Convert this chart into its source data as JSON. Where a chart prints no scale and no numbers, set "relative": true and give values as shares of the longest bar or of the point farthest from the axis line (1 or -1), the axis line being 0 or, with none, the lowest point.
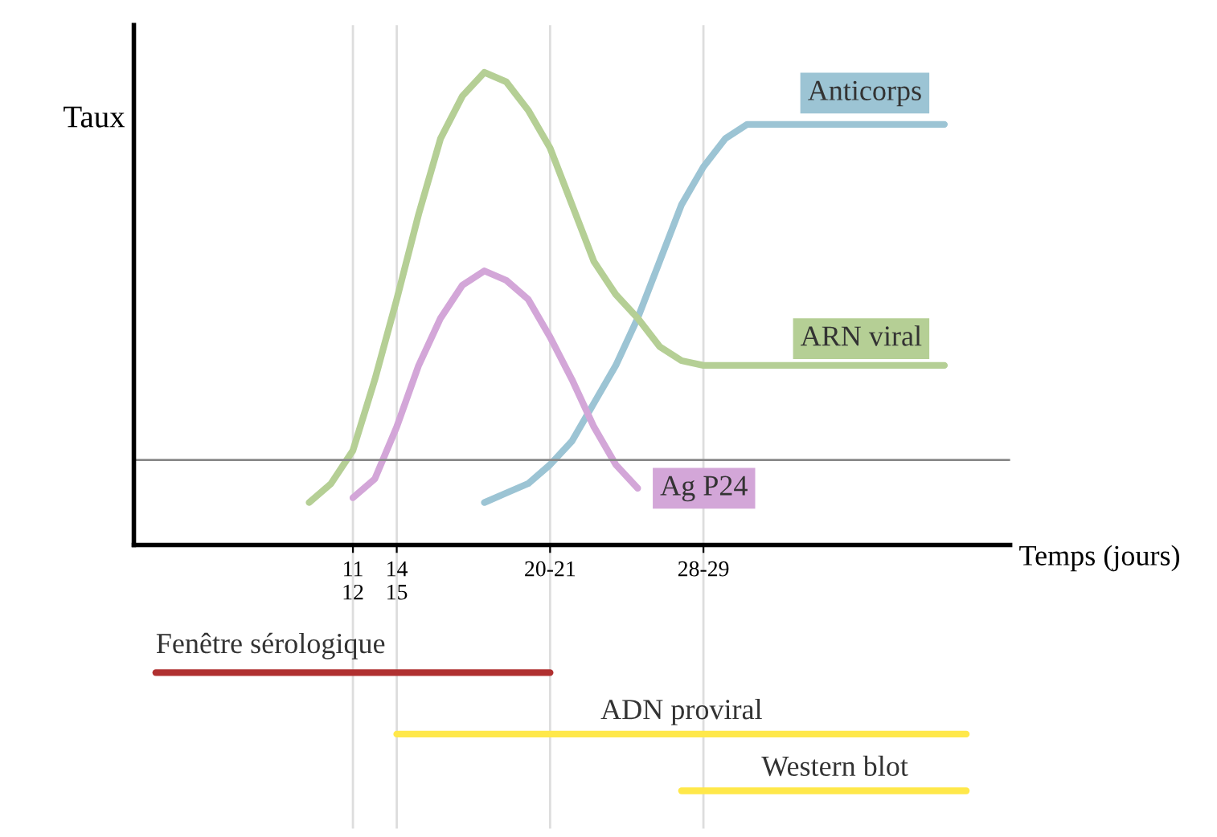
{
  "chart_data": {
    "type": "line",
    "relative": true,
    "ylabel": "Taux",
    "xlabel": "Temps (jours)",
    "categories": [
      null,
      null,
      null,
      null,
      null,
      null,
      null,
      null,
      null,
      "11\n12",
      null,
      "14\n15",
      null,
      null,
      null,
      null,
      null,
      null,
      "20-21",
      null,
      null,
      null,
      null,
      null,
      null,
      "28-29",
      null,
      null,
      null,
      null,
      null,
      null,
      null,
      null,
      null,
      null,
      null,
      null,
      null
    ],
    "grid": "x",
    "legend": false,
    "marker": "none",
    "line_style": "solid",
    "series": [
      {
        "name": "Anticorps",
        "color": "#9cc4d4",
        "values": [
          null,
          null,
          null,
          null,
          null,
          null,
          null,
          null,
          null,
          null,
          null,
          null,
          null,
          null,
          null,
          0.09,
          0.11,
          0.13,
          0.17,
          0.22,
          0.3,
          0.38,
          0.48,
          0.6,
          0.72,
          0.8,
          0.86,
          0.89,
          0.89,
          0.89,
          0.89,
          0.89,
          0.89,
          0.89,
          0.89,
          0.89,
          0.89,
          null,
          null
        ]
      },
      {
        "name": "ARN viral",
        "color": "#b5cf95",
        "values": [
          null,
          null,
          null,
          null,
          null,
          null,
          null,
          0.09,
          0.13,
          0.2,
          0.35,
          0.52,
          0.7,
          0.86,
          0.95,
          1.0,
          0.98,
          0.92,
          0.84,
          0.72,
          0.6,
          0.53,
          0.48,
          0.42,
          0.39,
          0.38,
          0.38,
          0.38,
          0.38,
          0.38,
          0.38,
          0.38,
          0.38,
          0.38,
          0.38,
          0.38,
          0.38,
          null,
          null
        ]
      },
      {
        "name": "Ag P24",
        "color": "#d3a6d8",
        "values": [
          null,
          null,
          null,
          null,
          null,
          null,
          null,
          null,
          null,
          0.1,
          0.14,
          0.25,
          0.38,
          0.48,
          0.55,
          0.58,
          0.56,
          0.52,
          0.44,
          0.35,
          0.25,
          0.17,
          0.12,
          null,
          null,
          null,
          null,
          null,
          null,
          null,
          null,
          null,
          null,
          null,
          null,
          null,
          null,
          null,
          null
        ]
      },
      {
        "name": "Fenêtre sérologique",
        "color": "#b03030",
        "values": [
          -0.27,
          -0.27,
          -0.27,
          -0.27,
          -0.27,
          -0.27,
          -0.27,
          -0.27,
          -0.27,
          -0.27,
          -0.27,
          -0.27,
          -0.27,
          -0.27,
          -0.27,
          -0.27,
          -0.27,
          -0.27,
          -0.27,
          null,
          null,
          null,
          null,
          null,
          null,
          null,
          null,
          null,
          null,
          null,
          null,
          null,
          null,
          null,
          null,
          null,
          null,
          null,
          null
        ]
      },
      {
        "name": "ADN proviral",
        "color": "#ffe84a",
        "values": [
          null,
          null,
          null,
          null,
          null,
          null,
          null,
          null,
          null,
          null,
          null,
          -0.4,
          -0.4,
          -0.4,
          -0.4,
          -0.4,
          -0.4,
          -0.4,
          -0.4,
          -0.4,
          -0.4,
          -0.4,
          -0.4,
          -0.4,
          -0.4,
          -0.4,
          -0.4,
          -0.4,
          -0.4,
          -0.4,
          -0.4,
          -0.4,
          -0.4,
          -0.4,
          -0.4,
          -0.4,
          -0.4,
          -0.4,
          null
        ]
      },
      {
        "name": "Western blot",
        "color": "#ffe84a",
        "values": [
          null,
          null,
          null,
          null,
          null,
          null,
          null,
          null,
          null,
          null,
          null,
          null,
          null,
          null,
          null,
          null,
          null,
          null,
          null,
          null,
          null,
          null,
          null,
          null,
          -0.52,
          -0.52,
          -0.52,
          -0.52,
          -0.52,
          -0.52,
          -0.52,
          -0.52,
          -0.52,
          -0.52,
          -0.52,
          -0.52,
          -0.52,
          -0.52,
          null
        ]
      }
    ],
    "ref_lines": [
      {
        "axis": "y",
        "value": 0.18,
        "color": "#888888"
      }
    ]
  }
}
